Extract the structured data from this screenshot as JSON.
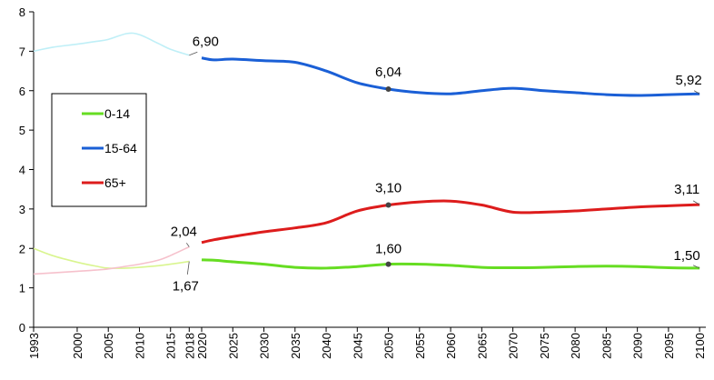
{
  "chart_data": {
    "type": "line",
    "x_ticks": [
      "1993",
      "2000",
      "2005",
      "2010",
      "2015",
      "2018",
      "2020",
      "2025",
      "2030",
      "2035",
      "2040",
      "2045",
      "2050",
      "2055",
      "2060",
      "2065",
      "2070",
      "2075",
      "2080",
      "2085",
      "2090",
      "2095",
      "2100"
    ],
    "y_ticks": [
      "0",
      "1",
      "2",
      "3",
      "4",
      "5",
      "6",
      "7",
      "8"
    ],
    "xlim": [
      1993,
      2101
    ],
    "ylim": [
      0,
      8
    ],
    "split_year": 2019,
    "series": [
      {
        "name": "0-14",
        "color": "#66dd22",
        "faded_color": "#d9f58f",
        "points": [
          [
            1993,
            2.0
          ],
          [
            1996,
            1.82
          ],
          [
            2000,
            1.65
          ],
          [
            2003,
            1.55
          ],
          [
            2005,
            1.5
          ],
          [
            2008,
            1.5
          ],
          [
            2010,
            1.52
          ],
          [
            2013,
            1.56
          ],
          [
            2015,
            1.6
          ],
          [
            2018,
            1.67
          ],
          [
            2020,
            1.71
          ],
          [
            2022,
            1.7
          ],
          [
            2025,
            1.66
          ],
          [
            2030,
            1.6
          ],
          [
            2035,
            1.52
          ],
          [
            2040,
            1.5
          ],
          [
            2045,
            1.54
          ],
          [
            2050,
            1.6
          ],
          [
            2055,
            1.6
          ],
          [
            2060,
            1.57
          ],
          [
            2065,
            1.52
          ],
          [
            2070,
            1.51
          ],
          [
            2075,
            1.52
          ],
          [
            2080,
            1.54
          ],
          [
            2085,
            1.55
          ],
          [
            2090,
            1.54
          ],
          [
            2095,
            1.51
          ],
          [
            2100,
            1.5
          ]
        ]
      },
      {
        "name": "15-64",
        "color": "#1a5fd6",
        "faded_color": "#bfeff7",
        "points": [
          [
            1993,
            7.0
          ],
          [
            1996,
            7.1
          ],
          [
            2000,
            7.18
          ],
          [
            2003,
            7.25
          ],
          [
            2005,
            7.3
          ],
          [
            2008,
            7.45
          ],
          [
            2010,
            7.42
          ],
          [
            2013,
            7.2
          ],
          [
            2015,
            7.05
          ],
          [
            2018,
            6.9
          ],
          [
            2020,
            6.83
          ],
          [
            2022,
            6.78
          ],
          [
            2025,
            6.8
          ],
          [
            2030,
            6.76
          ],
          [
            2035,
            6.72
          ],
          [
            2040,
            6.5
          ],
          [
            2045,
            6.2
          ],
          [
            2050,
            6.04
          ],
          [
            2055,
            5.95
          ],
          [
            2060,
            5.92
          ],
          [
            2065,
            6.0
          ],
          [
            2070,
            6.06
          ],
          [
            2075,
            6.0
          ],
          [
            2080,
            5.95
          ],
          [
            2085,
            5.9
          ],
          [
            2090,
            5.88
          ],
          [
            2095,
            5.9
          ],
          [
            2100,
            5.92
          ]
        ]
      },
      {
        "name": "65+",
        "color": "#dd1c1c",
        "faded_color": "#f6c1cc",
        "points": [
          [
            1993,
            1.35
          ],
          [
            1996,
            1.38
          ],
          [
            2000,
            1.42
          ],
          [
            2003,
            1.45
          ],
          [
            2005,
            1.48
          ],
          [
            2008,
            1.55
          ],
          [
            2010,
            1.6
          ],
          [
            2013,
            1.7
          ],
          [
            2015,
            1.82
          ],
          [
            2018,
            2.04
          ],
          [
            2020,
            2.15
          ],
          [
            2022,
            2.22
          ],
          [
            2025,
            2.3
          ],
          [
            2030,
            2.42
          ],
          [
            2035,
            2.52
          ],
          [
            2040,
            2.65
          ],
          [
            2045,
            2.95
          ],
          [
            2050,
            3.1
          ],
          [
            2055,
            3.18
          ],
          [
            2060,
            3.2
          ],
          [
            2065,
            3.1
          ],
          [
            2070,
            2.92
          ],
          [
            2075,
            2.92
          ],
          [
            2080,
            2.95
          ],
          [
            2085,
            3.0
          ],
          [
            2090,
            3.05
          ],
          [
            2095,
            3.08
          ],
          [
            2100,
            3.11
          ]
        ]
      }
    ],
    "annotations": [
      {
        "text": "6,90",
        "x": 2018,
        "y": 6.9,
        "marker": false
      },
      {
        "text": "6,04",
        "x": 2050,
        "y": 6.04,
        "marker": true
      },
      {
        "text": "5,92",
        "x": 2100,
        "y": 5.92,
        "marker": false
      },
      {
        "text": "2,04",
        "x": 2018,
        "y": 2.04,
        "marker": false
      },
      {
        "text": "3,10",
        "x": 2050,
        "y": 3.1,
        "marker": true
      },
      {
        "text": "3,11",
        "x": 2100,
        "y": 3.11,
        "marker": false
      },
      {
        "text": "1,67",
        "x": 2018,
        "y": 1.67,
        "marker": false
      },
      {
        "text": "1,60",
        "x": 2050,
        "y": 1.6,
        "marker": true
      },
      {
        "text": "1,50",
        "x": 2100,
        "y": 1.5,
        "marker": false
      }
    ],
    "legend": {
      "position": "left-middle",
      "entries": [
        "0-14",
        "15-64",
        "65+"
      ]
    },
    "grid": false
  }
}
